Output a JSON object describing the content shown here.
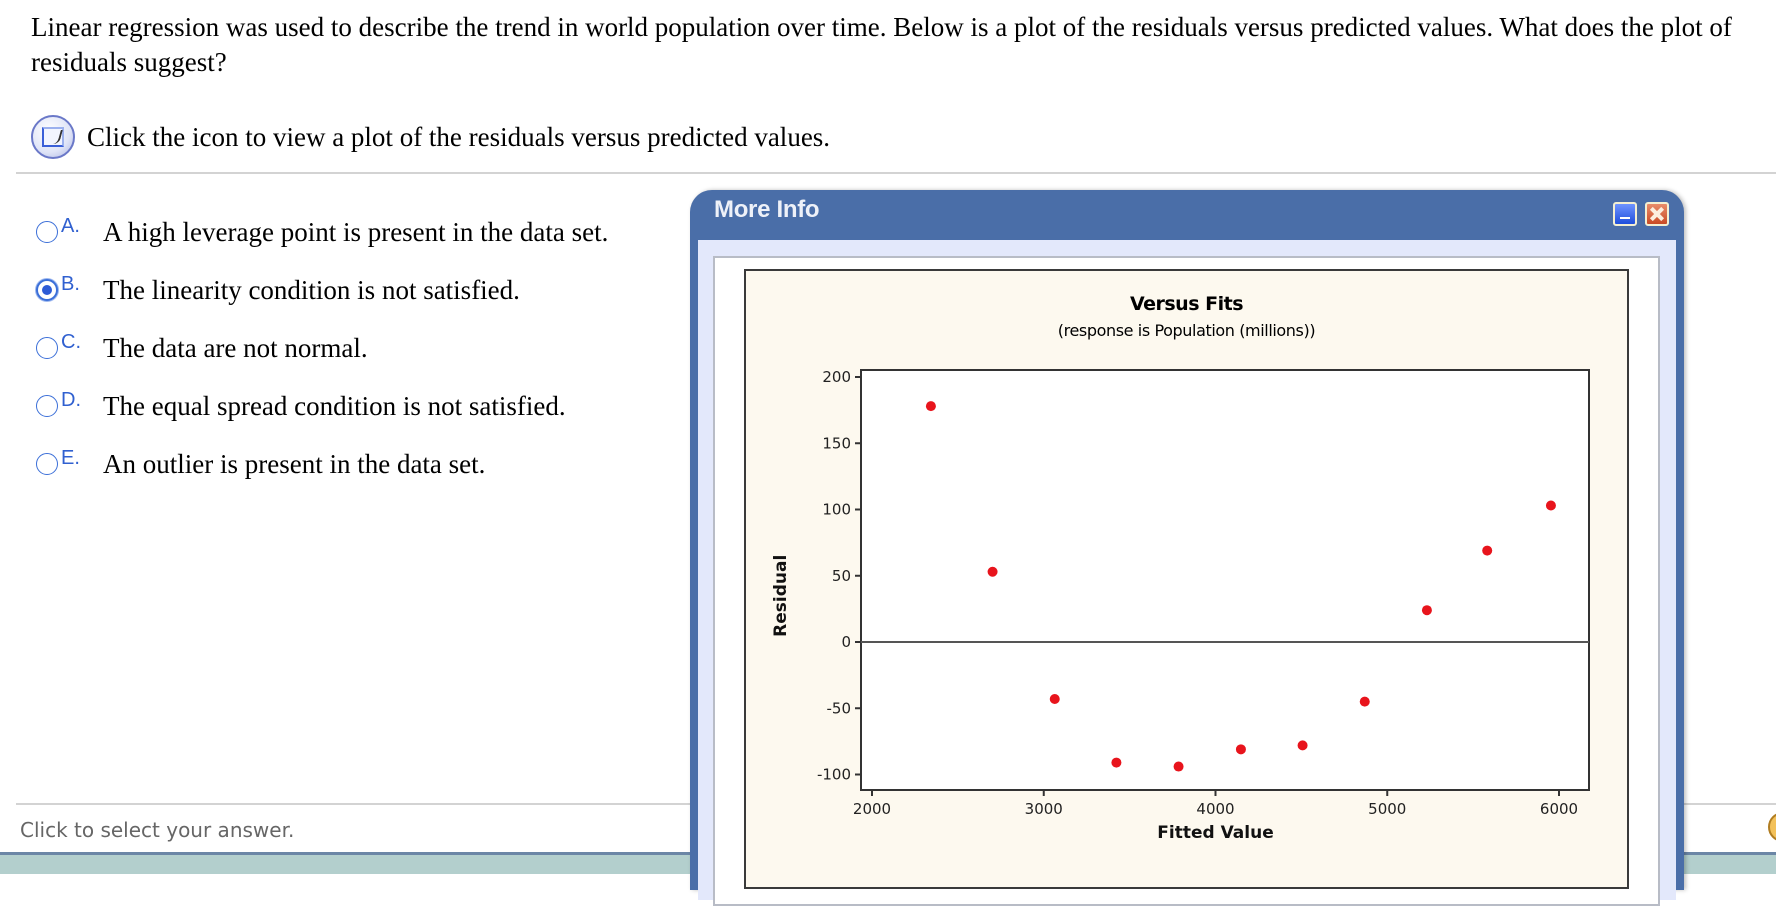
{
  "question": {
    "text": "Linear regression was used to describe the trend in world population over time. Below is a plot of the residuals versus predicted values. What does the plot of residuals suggest?"
  },
  "hint": {
    "icon": "graph-icon",
    "text": "Click the icon to view a plot of the residuals versus predicted values."
  },
  "options": [
    {
      "letter": "A.",
      "text": "A high leverage point is present in the data set.",
      "selected": false
    },
    {
      "letter": "B.",
      "text": "The linearity condition is not satisfied.",
      "selected": true
    },
    {
      "letter": "C.",
      "text": "The data are not normal.",
      "selected": false
    },
    {
      "letter": "D.",
      "text": "The equal spread condition is not satisfied.",
      "selected": false
    },
    {
      "letter": "E.",
      "text": "An outlier is present in the data set.",
      "selected": false
    }
  ],
  "status": {
    "text": "Click to select your answer."
  },
  "modal": {
    "title": "More Info",
    "minimize_icon": "minimize-icon",
    "close_icon": "close-icon"
  },
  "colors": {
    "title_bar": "#4a6ea8",
    "accent": "#3060d0",
    "point": "#e8141c",
    "chart_bg": "#fdf9ef"
  },
  "chart_data": {
    "type": "scatter",
    "title": "Versus Fits",
    "subtitle": "(response is Population (millions))",
    "xlabel": "Fitted Value",
    "ylabel": "Residual",
    "xlim": [
      1930,
      6180
    ],
    "ylim": [
      -112,
      205
    ],
    "xticks": [
      2000,
      3000,
      4000,
      5000,
      6000
    ],
    "yticks": [
      200,
      150,
      100,
      50,
      0,
      -50,
      -100
    ],
    "reference_line": 0,
    "grid": false,
    "series": [
      {
        "name": "Residuals",
        "x": [
          2343,
          2702,
          3064,
          3423,
          3785,
          4148,
          4507,
          4869,
          5231,
          5582,
          5953
        ],
        "y": [
          178,
          53,
          -43,
          -91,
          -94,
          -81,
          -78,
          -45,
          24,
          69,
          103
        ]
      }
    ]
  }
}
